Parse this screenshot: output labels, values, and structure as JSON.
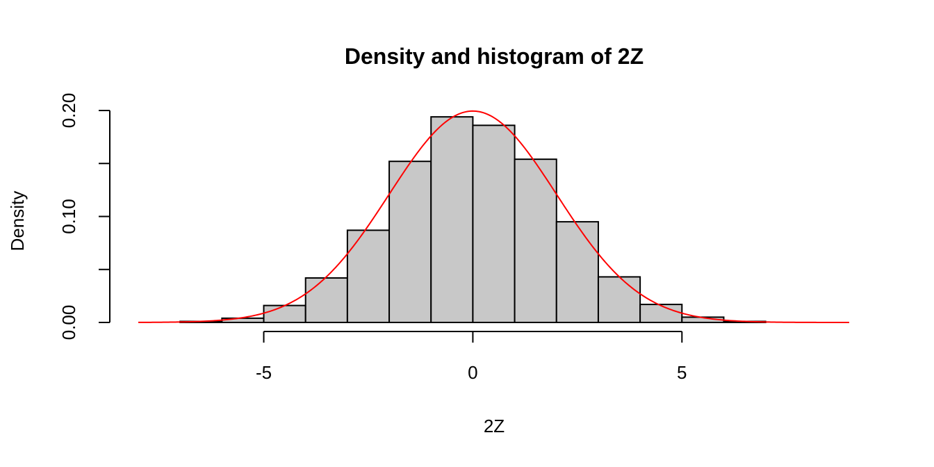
{
  "chart_data": {
    "type": "histogram",
    "title": "Density and histogram of 2Z",
    "xlabel": "2Z",
    "ylabel": "Density",
    "xlim": [
      -8,
      9
    ],
    "ylim": [
      0,
      0.2
    ],
    "x_ticks": [
      -5,
      0,
      5
    ],
    "x_tick_labels": [
      "-5",
      "0",
      "5"
    ],
    "y_ticks": [
      0,
      0.05,
      0.1,
      0.15,
      0.2
    ],
    "y_tick_labels": [
      "0.00",
      "",
      "0.10",
      "",
      "0.20"
    ],
    "grid": false,
    "bins": [
      {
        "x0": -7,
        "x1": -6,
        "density": 0.001
      },
      {
        "x0": -6,
        "x1": -5,
        "density": 0.004
      },
      {
        "x0": -5,
        "x1": -4,
        "density": 0.016
      },
      {
        "x0": -4,
        "x1": -3,
        "density": 0.042
      },
      {
        "x0": -3,
        "x1": -2,
        "density": 0.087
      },
      {
        "x0": -2,
        "x1": -1,
        "density": 0.152
      },
      {
        "x0": -1,
        "x1": 0,
        "density": 0.194
      },
      {
        "x0": 0,
        "x1": 1,
        "density": 0.186
      },
      {
        "x0": 1,
        "x1": 2,
        "density": 0.154
      },
      {
        "x0": 2,
        "x1": 3,
        "density": 0.095
      },
      {
        "x0": 3,
        "x1": 4,
        "density": 0.043
      },
      {
        "x0": 4,
        "x1": 5,
        "density": 0.017
      },
      {
        "x0": 5,
        "x1": 6,
        "density": 0.005
      },
      {
        "x0": 6,
        "x1": 7,
        "density": 0.001
      }
    ],
    "density_curve": {
      "distribution": "normal",
      "mean": 0,
      "sd": 2,
      "x_range": [
        -8,
        9
      ]
    },
    "colors": {
      "bar_fill": "#c8c8c8",
      "bar_stroke": "#000000",
      "curve": "#ff0000"
    }
  }
}
